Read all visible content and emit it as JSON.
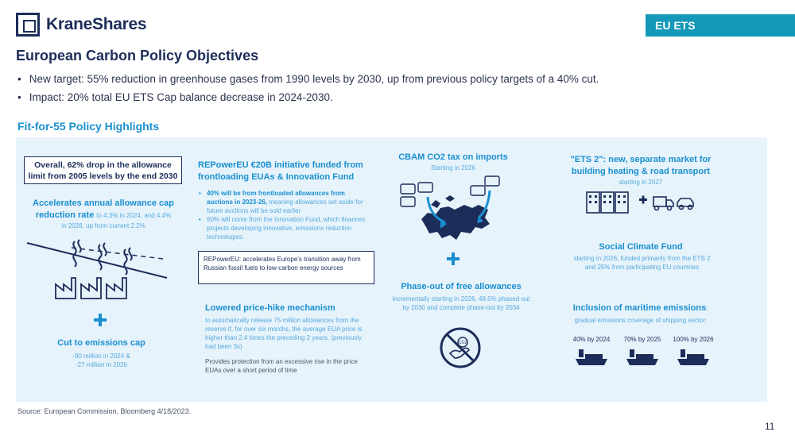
{
  "header": {
    "logo_text": "KraneShares",
    "tag": "EU ETS",
    "title": "European Carbon Policy Objectives",
    "bullets": [
      "New target: 55% reduction in greenhouse gases from 1990 levels by 2030, up from previous policy targets of a 40% cut.",
      "Impact: 20% total EU ETS Cap balance decrease in 2024-2030."
    ]
  },
  "section_title": "Fit-for-55 Policy Highlights",
  "col1": {
    "box": "Overall, 62% drop in the allowance limit from 2005 levels by the end 2030",
    "accel_title": "Accelerates annual allowance cap reduction rate",
    "accel_inline": "to 4.3% in 2024, and 4.4%",
    "accel_sub": "in 2028, up from current 2.2%",
    "cut_title": "Cut to emissions cap",
    "cut_line1": "-90 million in 2024 &",
    "cut_line2": "-27 million in 2026"
  },
  "col2": {
    "title": "REPowerEU €20B initiative funded from frontloading EUAs & Innovation Fund",
    "bullet1_bold": "40% will be from frontloaded allowances from auctions in 2023-26,",
    "bullet1_rest": "meaning allowances set aside for future auctions will be sold earlier",
    "bullet2": "60% will come from the Innovation Fund, which finances projects developing innovative, emissions reduction technologies.",
    "box": "REPowerEU: accelerates Europe's transition away from Russian fossil fuels to low-carbon energy sources",
    "price_title": "Lowered price-hike mechanism",
    "price_desc": "to automatically release 75 million allowances from the reserve if, for over six months, the average EUA price is higher than 2.4 times the preceding 2 years. (previously had been 3x)",
    "price_note": "Provides protection from an excessive rise in the price EUAs over a short period of time"
  },
  "col3": {
    "cbam_title": "CBAM CO2 tax on imports",
    "cbam_sub": "Starting in 2026",
    "phase_title": "Phase-out of free allowances",
    "phase_desc": "incrementally starting in 2026, 48.5% phased out by 2030 and complete phase-out by 2034",
    "no_co2_label": "CO2"
  },
  "col4": {
    "ets2_title": "\"ETS 2\": new, separate market for building heating & road transport",
    "ets2_sub": "starting in 2027",
    "social_title": "Social Climate Fund",
    "social_desc": "starting in 2026, funded primarily from the ETS 2 and 25% from participating EU countries",
    "maritime_title": "Inclusion of maritime emissions",
    "maritime_colon": ":",
    "maritime_sub": "gradual emissions coverage of shipping sector:",
    "ships": [
      {
        "label": "40% by 2024"
      },
      {
        "label": "70% by 2025"
      },
      {
        "label": "100% by 2026"
      }
    ]
  },
  "footer": {
    "source": "Source: European Commission, Bloomberg 4/18/2023.",
    "page": "11"
  },
  "colors": {
    "navy": "#1c2d5a",
    "blue": "#1a8fd0",
    "teal_tag": "#1498b8",
    "panel": "#e6f3fb"
  }
}
